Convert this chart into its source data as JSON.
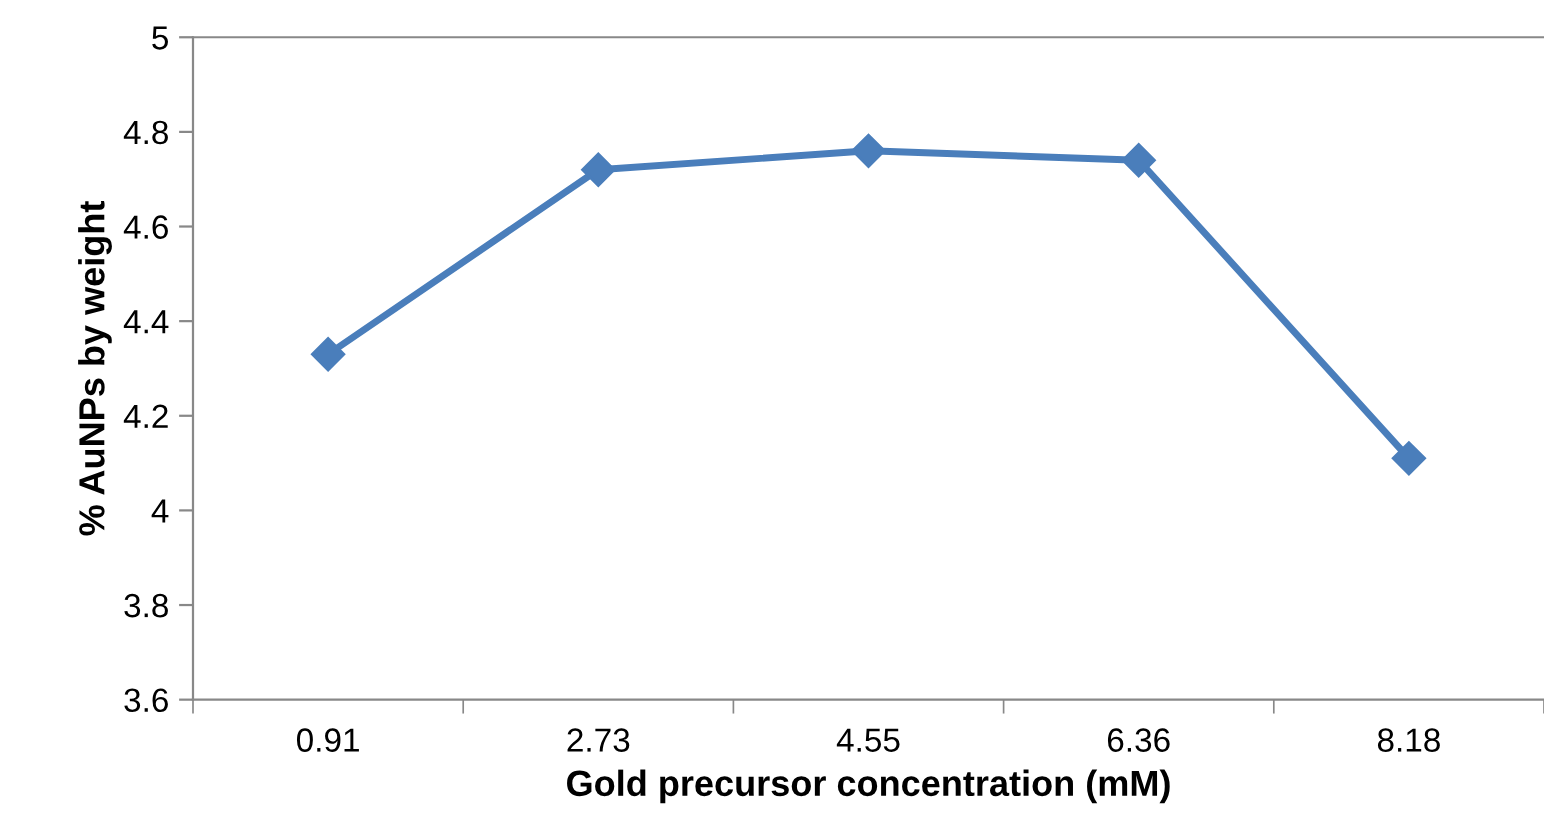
{
  "chart_data": {
    "type": "line",
    "xlabel": "Gold precursor concentration (mM)",
    "ylabel": "% AuNPs by weight",
    "categories": [
      "0.91",
      "2.73",
      "4.55",
      "6.36",
      "8.18"
    ],
    "series": [
      {
        "color": "#4a7ebb",
        "values": [
          4.33,
          4.72,
          4.76,
          4.74,
          4.11
        ]
      }
    ],
    "ylim": [
      3.6,
      5
    ],
    "yticks": [
      3.6,
      3.8,
      4,
      4.2,
      4.4,
      4.6,
      4.8,
      5
    ],
    "grid": false,
    "marker": "diamond",
    "line_style": "solid"
  }
}
